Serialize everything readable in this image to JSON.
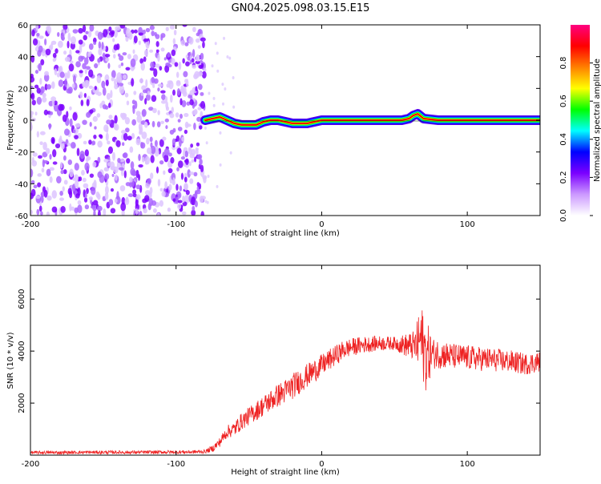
{
  "title": "GN04.2025.098.03.15.E15",
  "chart_data": [
    {
      "type": "heatmap",
      "xlabel": "Height of straight line (km)",
      "ylabel": "Frequency (Hz)",
      "xlim": [
        -200,
        150
      ],
      "ylim": [
        -60,
        60
      ],
      "xticks": [
        -200,
        -100,
        0,
        100
      ],
      "yticks": [
        -60,
        -40,
        -20,
        0,
        20,
        40,
        60
      ],
      "grid": false,
      "colorbar": {
        "label": "Normalized spectral amplitude",
        "range": [
          0,
          1
        ],
        "ticks": [
          0.0,
          0.2,
          0.4,
          0.6,
          0.8
        ],
        "colors": [
          "#ffffff",
          "#cc99ff",
          "#7b00ff",
          "#0000ff",
          "#00ffff",
          "#00ff00",
          "#ffff00",
          "#ff8000",
          "#ff0000",
          "#ff0080"
        ]
      },
      "noise_region": {
        "x_range": [
          -200,
          -80
        ],
        "freq_range": [
          -60,
          60
        ],
        "typical_amplitude": 0.2
      },
      "ridge": {
        "x": [
          -80,
          -75,
          -70,
          -65,
          -60,
          -55,
          -50,
          -45,
          -40,
          -35,
          -30,
          -25,
          -20,
          -15,
          -10,
          -5,
          0,
          10,
          20,
          30,
          40,
          50,
          55,
          60,
          63,
          66,
          70,
          80,
          90,
          100,
          110,
          120,
          130,
          140,
          150
        ],
        "freq": [
          0,
          1,
          2,
          0,
          -2,
          -3,
          -3,
          -3,
          -1,
          0,
          0,
          -1,
          -2,
          -2,
          -2,
          -1,
          0,
          0,
          0,
          0,
          0,
          0,
          0,
          1,
          3,
          4,
          1,
          0,
          0,
          0,
          0,
          0,
          0,
          0,
          0
        ],
        "amplitude": 0.95
      }
    },
    {
      "type": "line",
      "xlabel": "Height of straight line (km)",
      "ylabel": "SNR (10 * v/v)",
      "xlim": [
        -200,
        150
      ],
      "ylim": [
        0,
        7300
      ],
      "xticks": [
        -200,
        -100,
        0,
        100
      ],
      "yticks": [
        2000,
        4000,
        6000
      ],
      "grid": false,
      "series": [
        {
          "color": "#ee2222",
          "x": [
            -200,
            -180,
            -160,
            -140,
            -120,
            -100,
            -90,
            -80,
            -75,
            -70,
            -65,
            -60,
            -55,
            -50,
            -45,
            -40,
            -35,
            -30,
            -25,
            -20,
            -15,
            -10,
            -5,
            0,
            5,
            10,
            15,
            20,
            30,
            40,
            50,
            60,
            65,
            68,
            70,
            72,
            75,
            80,
            90,
            100,
            110,
            120,
            130,
            140,
            150
          ],
          "y": [
            100,
            100,
            110,
            110,
            110,
            120,
            120,
            140,
            250,
            500,
            900,
            1000,
            1300,
            1500,
            1700,
            1900,
            2100,
            2300,
            2450,
            2650,
            2850,
            3050,
            3250,
            3450,
            3650,
            3850,
            4050,
            4150,
            4250,
            4300,
            4300,
            4200,
            4200,
            4500,
            4100,
            3800,
            3900,
            3900,
            3800,
            3750,
            3700,
            3650,
            3600,
            3500,
            3600
          ],
          "noise": {
            "x": [
              -200,
              -80,
              -60,
              -20,
              20,
              50,
              64,
              68,
              72,
              76,
              90,
              150
            ],
            "amplitude": [
              60,
              70,
              300,
              500,
              350,
              250,
              600,
              1400,
              1400,
              600,
              500,
              400
            ]
          }
        }
      ]
    }
  ]
}
